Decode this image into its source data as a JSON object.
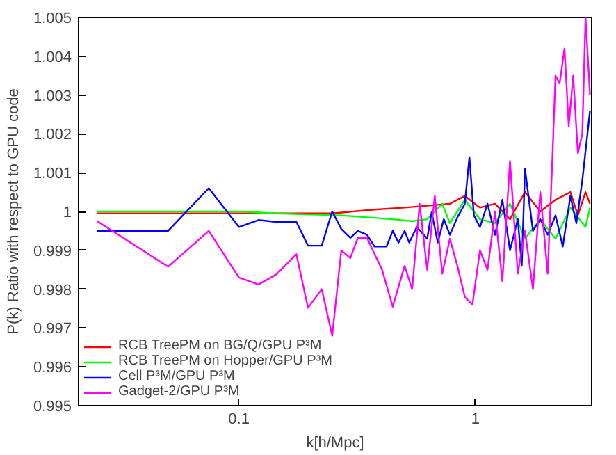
{
  "chart_data": {
    "type": "line",
    "xlabel": "k[h/Mpc]",
    "ylabel": "P(k) Ratio with respect to GPU code",
    "log": "x",
    "xlim": [
      0.021,
      3.1
    ],
    "xticks": [
      0.1,
      1
    ],
    "ylim": [
      0.995,
      1.005
    ],
    "yticks": [
      0.995,
      0.996,
      0.997,
      0.998,
      0.999,
      1,
      1.001,
      1.002,
      1.003,
      1.004,
      1.005
    ],
    "grid": false,
    "legend": "bottom left",
    "line_style": "solid",
    "marker": "none",
    "series": [
      {
        "name": "RCB TreePM on BG/Q/GPU P³M",
        "color": "#ff0000",
        "x": [
          0.0252,
          0.1,
          0.248,
          0.374,
          0.502,
          0.78,
          0.902,
          1.045,
          1.21,
          1.4,
          1.62,
          1.88,
          2.18,
          2.52,
          2.71,
          2.92,
          3.05
        ],
        "values": [
          0.99995,
          0.99995,
          0.99995,
          1.00005,
          1.0001,
          1.0002,
          1.0004,
          1.0001,
          1.0002,
          0.9998,
          1.0005,
          1.0,
          1.0003,
          1.0005,
          0.9999,
          1.0005,
          1.0002
        ]
      },
      {
        "name": "RCB TreePM on Hopper/GPU P³M",
        "color": "#00ff00",
        "x": [
          0.0252,
          0.1,
          0.144,
          0.271,
          0.447,
          0.54,
          0.625,
          0.724,
          0.78,
          0.902,
          1.045,
          1.21,
          1.4,
          1.62,
          1.88,
          2.18,
          2.52,
          2.92,
          3.05
        ],
        "values": [
          1.0,
          1.0,
          0.99995,
          0.9999,
          0.9998,
          0.99975,
          0.9998,
          1.0002,
          0.9997,
          1.0003,
          0.9998,
          0.9997,
          1.0002,
          0.9993,
          0.9998,
          0.9993,
          1.0001,
          0.9996,
          1.0001
        ]
      },
      {
        "name": "Cell P³M/GPU P³M",
        "color": "#0000ff",
        "x": [
          0.0252,
          0.0502,
          0.0746,
          0.1,
          0.121,
          0.144,
          0.175,
          0.196,
          0.224,
          0.248,
          0.271,
          0.296,
          0.318,
          0.348,
          0.374,
          0.421,
          0.447,
          0.473,
          0.502,
          0.525,
          0.565,
          0.625,
          0.653,
          0.693,
          0.735,
          0.78,
          0.839,
          0.902,
          0.943,
          0.985,
          1.045,
          1.125,
          1.21,
          1.3,
          1.4,
          1.51,
          1.57,
          1.62,
          1.75,
          1.88,
          2.02,
          2.18,
          2.34,
          2.52,
          2.67,
          2.83,
          3.0,
          3.05
        ],
        "values": [
          0.9995,
          0.9995,
          1.0006,
          0.9996,
          0.99978,
          0.99973,
          0.99973,
          0.99912,
          0.99912,
          1.0,
          0.99955,
          0.99932,
          0.9995,
          0.9994,
          0.9991,
          0.9991,
          0.9995,
          0.9992,
          0.9995,
          0.9992,
          0.9996,
          0.9993,
          0.99998,
          0.9992,
          0.9998,
          0.9994,
          0.99985,
          1.0002,
          1.0014,
          0.9999,
          0.9996,
          1.0002,
          0.9994,
          1.0003,
          0.999,
          0.9998,
          0.9986,
          1.0011,
          0.9995,
          0.9998,
          0.9994,
          0.9999,
          0.9991,
          1.0004,
          0.9997,
          1.0008,
          1.0022,
          1.0026
        ]
      },
      {
        "name": "Gadget-2/GPU P³M",
        "color": "#ff00ff",
        "x": [
          0.0252,
          0.0502,
          0.0746,
          0.1,
          0.121,
          0.144,
          0.175,
          0.196,
          0.224,
          0.248,
          0.271,
          0.296,
          0.318,
          0.348,
          0.403,
          0.447,
          0.502,
          0.54,
          0.581,
          0.625,
          0.673,
          0.724,
          0.78,
          0.839,
          0.902,
          0.971,
          1.045,
          1.125,
          1.21,
          1.3,
          1.4,
          1.51,
          1.62,
          1.75,
          1.88,
          2.02,
          2.11,
          2.18,
          2.27,
          2.38,
          2.48,
          2.59,
          2.71,
          2.83,
          2.92,
          3.05
        ],
        "values": [
          0.99975,
          0.99858,
          0.9995,
          0.9983,
          0.99812,
          0.99838,
          0.9989,
          0.99752,
          0.998,
          0.9968,
          0.999,
          0.9988,
          0.99932,
          0.99932,
          0.9985,
          0.99755,
          0.9986,
          0.998,
          1.0002,
          0.9985,
          1.0004,
          0.9984,
          0.9993,
          0.9986,
          0.9978,
          0.9976,
          0.999,
          0.9985,
          1.0,
          0.9982,
          1.0013,
          0.9984,
          0.9995,
          0.998,
          1.0005,
          0.9984,
          1.0012,
          1.0035,
          1.0033,
          1.0042,
          1.0022,
          1.0035,
          1.0015,
          1.002,
          1.005,
          1.003
        ]
      }
    ]
  }
}
